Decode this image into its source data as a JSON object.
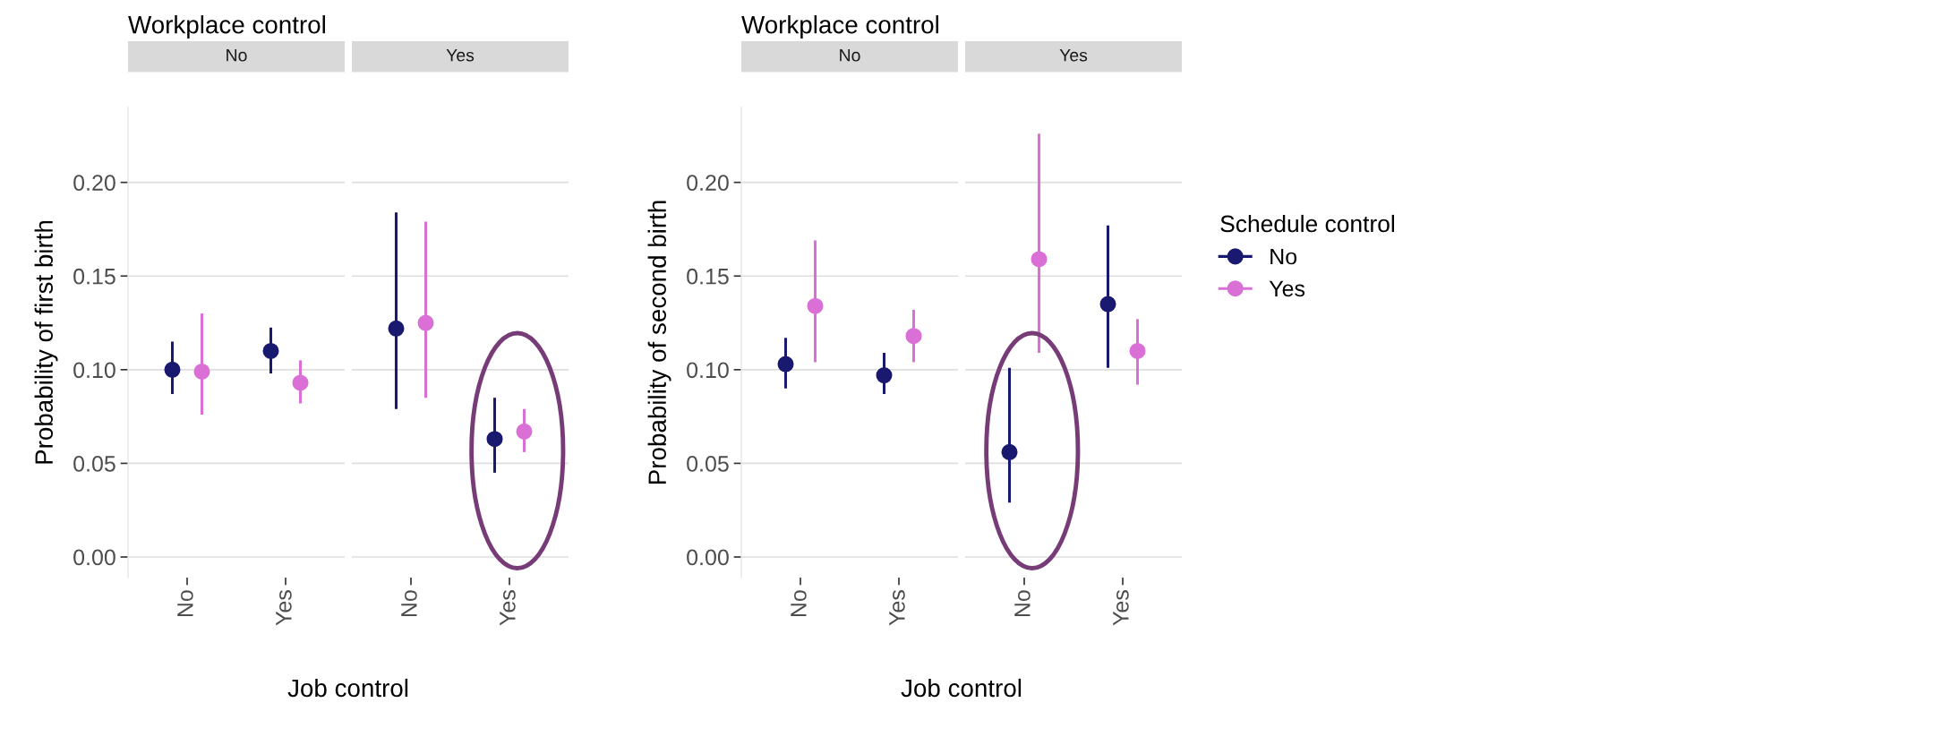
{
  "chart_data": [
    {
      "type": "scatter",
      "title": "Workplace control",
      "ylabel": "Probability of first birth",
      "xlabel": "Job control",
      "categories": [
        "No",
        "Yes",
        "No",
        "Yes"
      ],
      "annotations": [
        "No",
        "Yes"
      ],
      "ylim": [
        -0.011,
        0.24
      ],
      "yticks": [
        {
          "value": 0,
          "label": "0.00"
        },
        {
          "value": 0.05,
          "label": "0.05"
        },
        {
          "value": 0.1,
          "label": "0.10"
        },
        {
          "value": 0.15,
          "label": "0.15"
        },
        {
          "value": 0.2,
          "label": "0.20"
        }
      ],
      "grid": "y",
      "marker": "circle",
      "series": [
        {
          "color": "#191970",
          "values": [
            0.1,
            0.11,
            0.122,
            0.063
          ],
          "errors": [
            [
              0.087,
              0.115
            ],
            [
              0.098,
              0.1225
            ],
            [
              0.079,
              0.184
            ],
            [
              0.045,
              0.085
            ]
          ]
        },
        {
          "color": "#da70d6",
          "values": [
            0.099,
            0.093,
            0.125,
            0.067
          ],
          "errors": [
            [
              0.076,
              0.13
            ],
            [
              0.082,
              0.105
            ],
            [
              0.085,
              0.179
            ],
            [
              0.056,
              0.079
            ]
          ]
        }
      ]
    },
    {
      "type": "scatter",
      "title": "Workplace control",
      "ylabel": "Probability of second birth",
      "xlabel": "Job control",
      "categories": [
        "No",
        "Yes",
        "No",
        "Yes"
      ],
      "annotations": [
        "No",
        "Yes"
      ],
      "ylim": [
        -0.011,
        0.24
      ],
      "yticks": [
        {
          "value": 0,
          "label": "0.00"
        },
        {
          "value": 0.05,
          "label": "0.05"
        },
        {
          "value": 0.1,
          "label": "0.10"
        },
        {
          "value": 0.15,
          "label": "0.15"
        },
        {
          "value": 0.2,
          "label": "0.20"
        }
      ],
      "grid": "y",
      "marker": "circle",
      "legend": "right",
      "legend_title": "Schedule control",
      "series": [
        {
          "name": "No",
          "color": "#191970",
          "values": [
            0.103,
            0.097,
            0.056,
            0.135
          ],
          "errors": [
            [
              0.09,
              0.117
            ],
            [
              0.087,
              0.109
            ],
            [
              0.029,
              0.101
            ],
            [
              0.101,
              0.177
            ]
          ]
        },
        {
          "name": "Yes",
          "color": "#da70d6",
          "values": [
            0.134,
            0.118,
            0.159,
            0.11
          ],
          "errors": [
            [
              0.104,
              0.169
            ],
            [
              0.104,
              0.132
            ],
            [
              0.109,
              0.226
            ],
            [
              0.092,
              0.127
            ]
          ]
        }
      ]
    }
  ]
}
